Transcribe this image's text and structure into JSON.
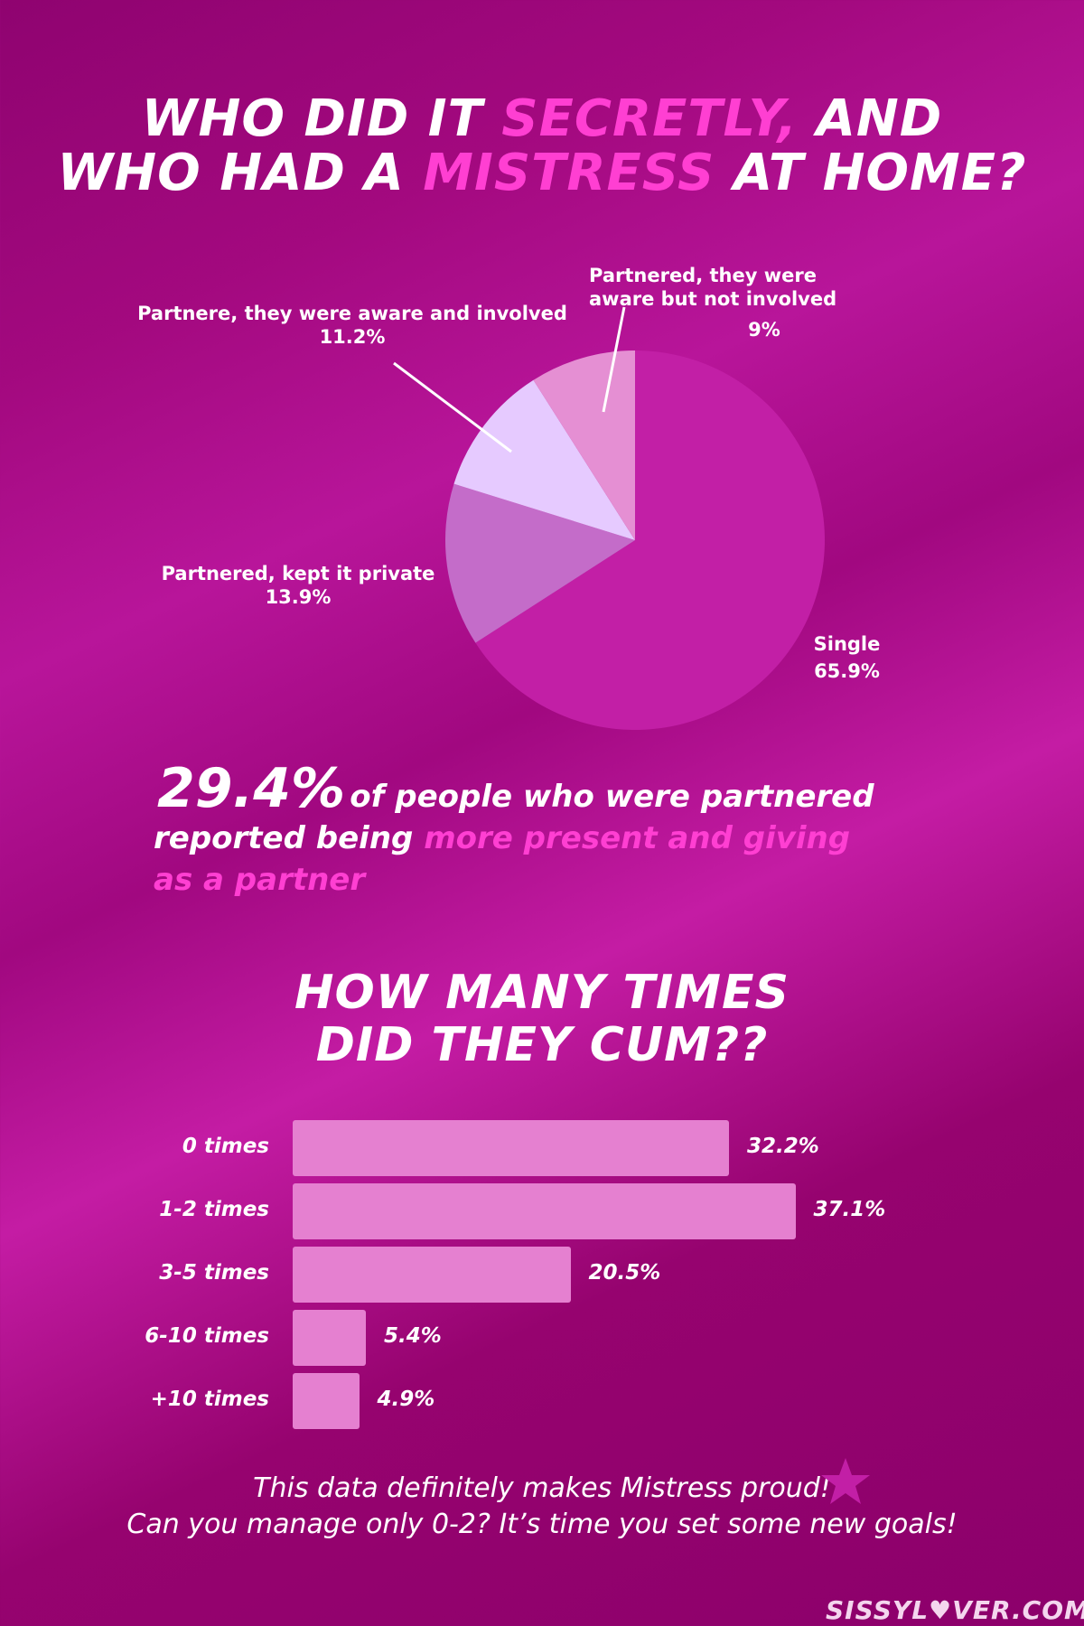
{
  "title1": {
    "line1_a": "WHO DID IT ",
    "line1_hl": "SECRETLY,",
    "line1_b": " AND",
    "line2_a": "WHO HAD A ",
    "line2_hl": "MISTRESS",
    "line2_b": " AT HOME?"
  },
  "pie_chart": {
    "type": "pie",
    "slices": [
      {
        "label": "Single",
        "value": 65.9,
        "value_text": "65.9%",
        "color": "#c21fa6"
      },
      {
        "label": "Partnered, kept it private",
        "value": 13.9,
        "value_text": "13.9%",
        "color": "#c46cc9"
      },
      {
        "label": "Partnere, they were aware and involved",
        "value": 11.2,
        "value_text": "11.2%",
        "color": "#e6caff"
      },
      {
        "label": "Partnered, they were aware but not involved",
        "value": 9,
        "value_text": "9%",
        "color": "#e58fd3"
      }
    ]
  },
  "stat": {
    "big": "29.4%",
    "line1": "of people who were partnered",
    "line2_a": "reported being ",
    "line2_hl": "more present and giving",
    "line3_hl": "as a partner"
  },
  "title2": {
    "line1": "HOW MANY TIMES",
    "line2": "DID THEY CUM??"
  },
  "chart_data": {
    "type": "bar",
    "orientation": "horizontal",
    "categories": [
      "0 times",
      "1-2 times",
      "3-5 times",
      "6-10 times",
      "+10 times"
    ],
    "values": [
      32.2,
      37.1,
      20.5,
      5.4,
      4.9
    ],
    "value_labels": [
      "32.2%",
      "37.1%",
      "20.5%",
      "5.4%",
      "4.9%"
    ],
    "bar_color": "#e580d0"
  },
  "footer": {
    "line1": "This data definitely makes Mistress proud!",
    "line2": "Can you manage only 0-2? It’s time you set some new goals!",
    "brand_a": "SISSYL",
    "brand_b": "VER.COM",
    "star_color": "#c21fa6"
  }
}
